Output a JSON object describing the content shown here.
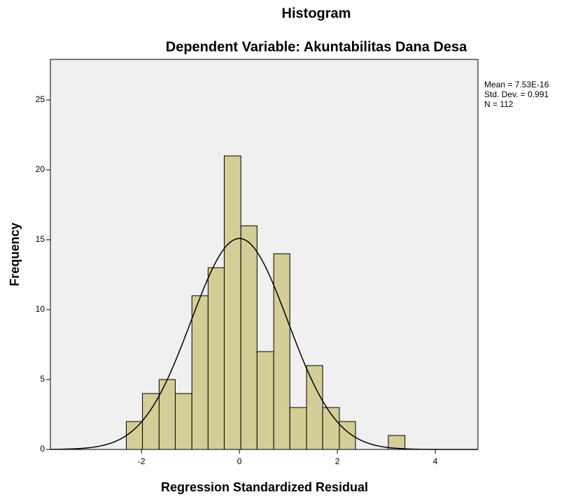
{
  "chart_data": {
    "type": "histogram",
    "title": "Histogram",
    "subtitle": "Dependent Variable: Akuntabilitas Dana Desa",
    "x_label": "Regression Standardized Residual",
    "y_label": "Frequency",
    "bins": [
      -2.31,
      -1.98,
      -1.64,
      -1.31,
      -0.97,
      -0.64,
      -0.31,
      0.03,
      0.36,
      0.7,
      1.03,
      1.37,
      1.7,
      2.04,
      2.37,
      2.71,
      3.04,
      3.38
    ],
    "values": [
      2,
      4,
      5,
      4,
      11,
      13,
      21,
      16,
      7,
      14,
      3,
      6,
      3,
      2,
      0,
      0,
      1
    ],
    "color": "#d3ce97",
    "xlim": [
      -3.86,
      4.87
    ],
    "xticks": [
      -2,
      0,
      2,
      4
    ],
    "ylim": [
      0,
      27.9
    ],
    "yticks": [
      0,
      5,
      10,
      15,
      20,
      25
    ],
    "grid": false,
    "stats": {
      "mean": {
        "value": 7.53e-16,
        "label": "Mean = 7.53E-16"
      },
      "std_dev": {
        "value": 0.991,
        "label": "Std. Dev. = 0.991"
      },
      "n": {
        "value": 112,
        "label": "N = 112"
      }
    }
  }
}
